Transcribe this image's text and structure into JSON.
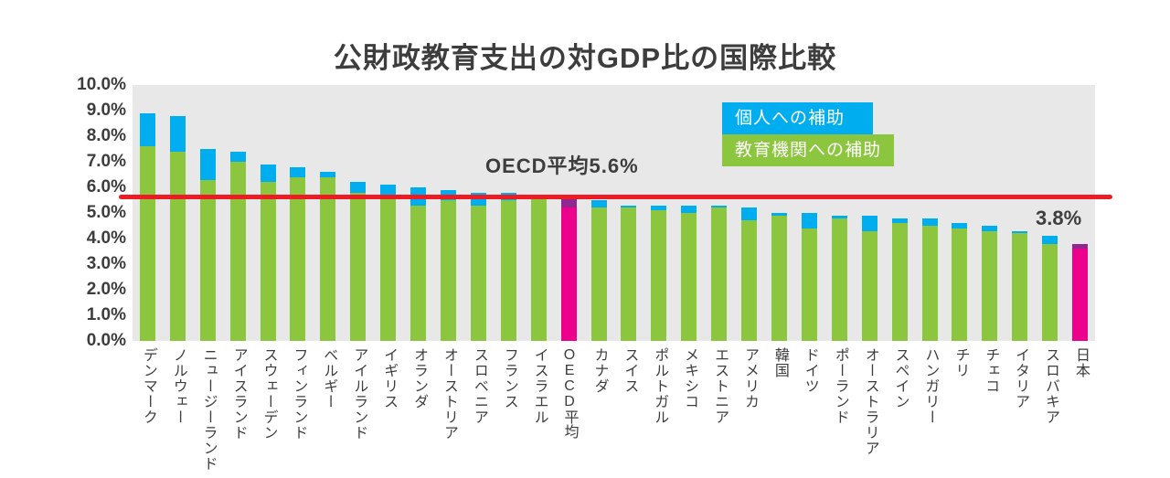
{
  "title": "公財政教育支出の対GDP比の国際比較",
  "legend": {
    "individual": {
      "label": "個人への補助",
      "color": "#00aeef"
    },
    "institution": {
      "label": "教育機関への補助",
      "color": "#8cc63e"
    }
  },
  "annotations": {
    "oecd_average": "OECD平均5.6%",
    "japan_value": "3.8%"
  },
  "colors": {
    "individual_subsidy": "#00aeef",
    "institution_subsidy": "#8cc63e",
    "highlight_institution": "#ec008c",
    "highlight_individual": "#92278f",
    "reference_line": "#ed1c24",
    "plot_background": "#e8e8e8",
    "text": "#3d3d3d"
  },
  "y_axis": {
    "ticks": [
      "10.0%",
      "9.0%",
      "8.0%",
      "7.0%",
      "6.0%",
      "5.0%",
      "4.0%",
      "3.0%",
      "2.0%",
      "1.0%",
      "0.0%"
    ]
  },
  "chart_data": {
    "type": "bar",
    "stacked": true,
    "title": "公財政教育支出の対GDP比の国際比較",
    "unit": "% of GDP",
    "categories": [
      "デンマーク",
      "ノルウェー",
      "ニュージーランド",
      "アイスランド",
      "スウェーデン",
      "フィンランド",
      "ベルギー",
      "アイルランド",
      "イギリス",
      "オランダ",
      "オーストリア",
      "スロベニア",
      "フランス",
      "イスラエル",
      "OECD平均",
      "カナダ",
      "スイス",
      "ポルトガル",
      "メキシコ",
      "エストニア",
      "アメリカ",
      "韓国",
      "ドイツ",
      "ポーランド",
      "オーストラリア",
      "スペイン",
      "ハンガリー",
      "チリ",
      "チェコ",
      "イタリア",
      "スロバキア",
      "日本"
    ],
    "series": [
      {
        "name": "教育機関への補助",
        "values": [
          7.6,
          7.4,
          6.3,
          7.0,
          6.2,
          6.4,
          6.4,
          5.8,
          5.7,
          5.3,
          5.5,
          5.3,
          5.5,
          5.6,
          5.2,
          5.2,
          5.2,
          5.1,
          5.0,
          5.2,
          4.7,
          4.9,
          4.4,
          4.8,
          4.3,
          4.6,
          4.5,
          4.4,
          4.3,
          4.2,
          3.8,
          3.6
        ]
      },
      {
        "name": "個人への補助",
        "values": [
          1.3,
          1.4,
          1.2,
          0.4,
          0.7,
          0.4,
          0.2,
          0.4,
          0.4,
          0.7,
          0.4,
          0.5,
          0.3,
          0.1,
          0.4,
          0.3,
          0.1,
          0.2,
          0.3,
          0.1,
          0.5,
          0.1,
          0.6,
          0.1,
          0.6,
          0.2,
          0.3,
          0.2,
          0.2,
          0.1,
          0.3,
          0.2
        ]
      }
    ],
    "highlighted_categories": [
      "OECD平均",
      "日本"
    ],
    "reference_line": {
      "value": 5.6,
      "label": "OECD平均5.6%"
    },
    "value_labels": [
      {
        "category": "日本",
        "label": "3.8%"
      }
    ],
    "xlabel": "",
    "ylabel": "",
    "ylim": [
      0,
      10
    ],
    "ytick_step": 1.0,
    "grid": false,
    "legend_position": "top-right"
  }
}
